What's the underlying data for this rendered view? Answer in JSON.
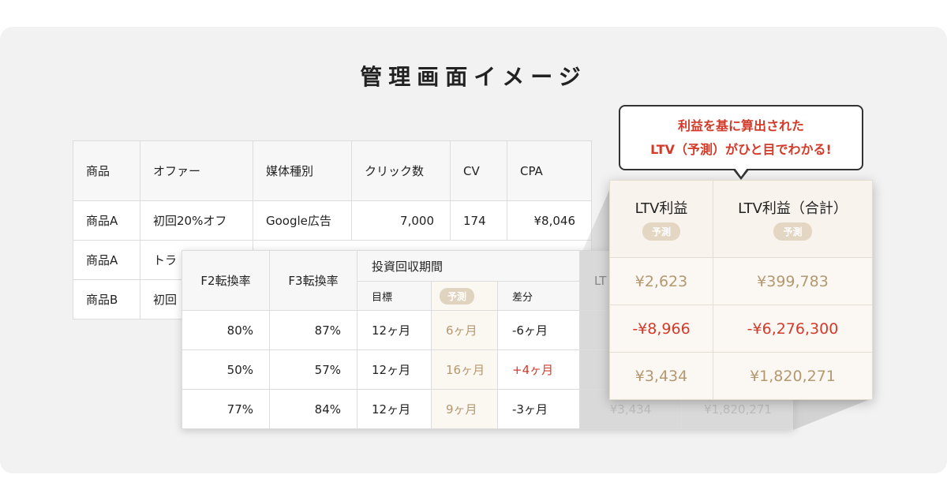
{
  "title": "管理画面イメージ",
  "colors": {
    "accent_red": "#d23a2a",
    "predict_gold": "#b39870",
    "predict_bg": "#fbf7f1",
    "card_bg": "#f2f2f2"
  },
  "callout": {
    "line1": "利益を基に算出された",
    "line2": "LTV（予測）がひと目でわかる!"
  },
  "table_main": {
    "headers": [
      "商品",
      "オファー",
      "媒体種別",
      "クリック数",
      "CV",
      "CPA"
    ],
    "rows": [
      [
        "商品A",
        "初回20%オフ",
        "Google広告",
        "7,000",
        "174",
        "¥8,046"
      ],
      [
        "商品A",
        "トラ"
      ],
      [
        "商品B",
        "初回"
      ]
    ]
  },
  "table_mid": {
    "headers": {
      "f2": "F2転換率",
      "f3": "F3転換率",
      "payback": "投資回収期間",
      "target": "目標",
      "predict": "予測",
      "diff": "差分",
      "ltv_partial": "LT"
    },
    "rows": [
      {
        "f2": "80%",
        "f3": "87%",
        "target": "12ヶ月",
        "predict": "6ヶ月",
        "diff": "-6ヶ月",
        "faded1": "¥",
        "faded2": ""
      },
      {
        "f2": "50%",
        "f3": "57%",
        "target": "12ヶ月",
        "predict": "16ヶ月",
        "diff": "+4ヶ月",
        "faded1": "-¥",
        "faded2": ""
      },
      {
        "f2": "77%",
        "f3": "84%",
        "target": "12ヶ月",
        "predict": "9ヶ月",
        "diff": "-3ヶ月",
        "faded1": "¥3,434",
        "faded2": "¥1,820,271"
      }
    ]
  },
  "zoom": {
    "headers": [
      "LTV利益",
      "LTV利益（合計）"
    ],
    "badge": "予測",
    "rows": [
      [
        "¥2,623",
        "¥399,783"
      ],
      [
        "-¥8,966",
        "-¥6,276,300"
      ],
      [
        "¥3,434",
        "¥1,820,271"
      ]
    ]
  }
}
